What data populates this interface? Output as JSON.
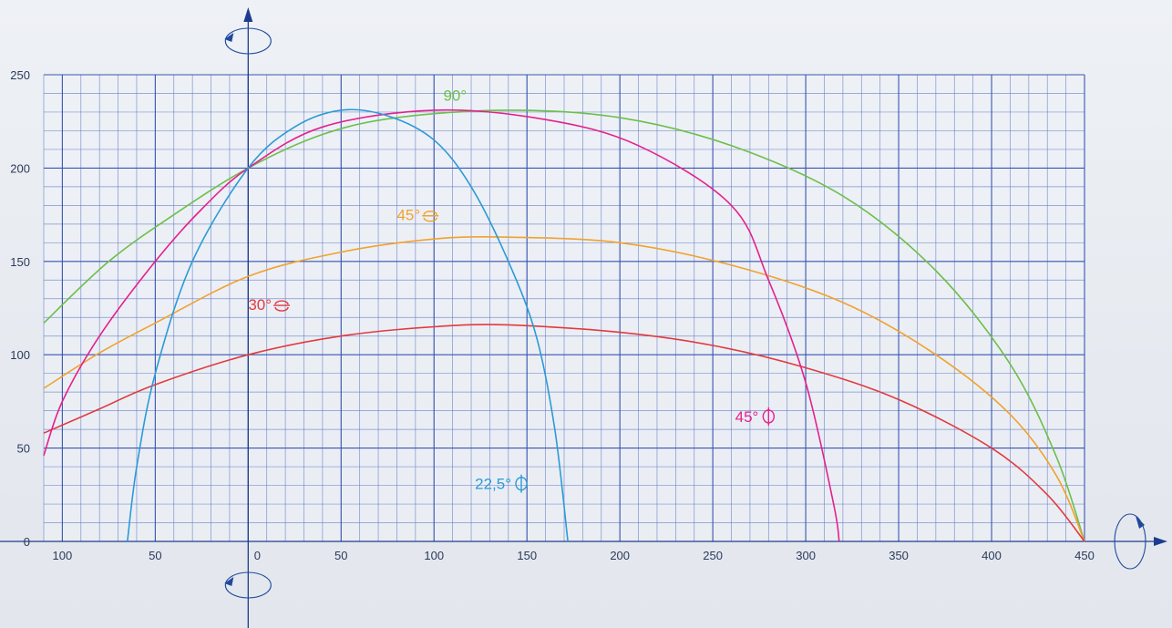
{
  "chart_data": {
    "type": "line",
    "title": "",
    "xlabel": "",
    "ylabel": "",
    "xlim": [
      -110,
      450
    ],
    "ylim": [
      0,
      250
    ],
    "grid": true,
    "x_ticks": [
      {
        "value": -100,
        "label": "100"
      },
      {
        "value": -50,
        "label": "50"
      },
      {
        "value": 0,
        "label": "0"
      },
      {
        "value": 50,
        "label": "50"
      },
      {
        "value": 100,
        "label": "100"
      },
      {
        "value": 150,
        "label": "150"
      },
      {
        "value": 200,
        "label": "200"
      },
      {
        "value": 250,
        "label": "250"
      },
      {
        "value": 300,
        "label": "300"
      },
      {
        "value": 350,
        "label": "350"
      },
      {
        "value": 400,
        "label": "400"
      },
      {
        "value": 450,
        "label": "450"
      }
    ],
    "y_ticks": [
      {
        "value": 0,
        "label": "0"
      },
      {
        "value": 50,
        "label": "50"
      },
      {
        "value": 100,
        "label": "100"
      },
      {
        "value": 150,
        "label": "150"
      },
      {
        "value": 200,
        "label": "200"
      },
      {
        "value": 250,
        "label": "250"
      }
    ],
    "series": [
      {
        "name": "90°",
        "color": "#6cbf4a",
        "rotation_symbol": "",
        "label_at": [
          105,
          236
        ],
        "points": [
          [
            -110,
            117
          ],
          [
            -75,
            150
          ],
          [
            -40,
            175
          ],
          [
            0,
            200
          ],
          [
            40,
            218
          ],
          [
            80,
            227
          ],
          [
            140,
            231
          ],
          [
            200,
            227
          ],
          [
            260,
            212
          ],
          [
            320,
            185
          ],
          [
            370,
            145
          ],
          [
            410,
            95
          ],
          [
            435,
            45
          ],
          [
            450,
            0
          ]
        ]
      },
      {
        "name": "45°",
        "color": "#f0a22e",
        "rotation_symbol": "horizontal",
        "label_at": [
          80,
          172
        ],
        "points": [
          [
            -110,
            82
          ],
          [
            -80,
            101
          ],
          [
            -50,
            117
          ],
          [
            0,
            142
          ],
          [
            50,
            155
          ],
          [
            100,
            162
          ],
          [
            140,
            163
          ],
          [
            200,
            160
          ],
          [
            260,
            148
          ],
          [
            320,
            128
          ],
          [
            370,
            100
          ],
          [
            410,
            68
          ],
          [
            435,
            35
          ],
          [
            450,
            0
          ]
        ]
      },
      {
        "name": "30°",
        "color": "#e23a3f",
        "rotation_symbol": "horizontal",
        "label_at": [
          0,
          124
        ],
        "points": [
          [
            -110,
            58
          ],
          [
            -80,
            71
          ],
          [
            -50,
            84
          ],
          [
            0,
            100
          ],
          [
            50,
            110
          ],
          [
            100,
            115
          ],
          [
            140,
            116
          ],
          [
            200,
            112
          ],
          [
            250,
            105
          ],
          [
            300,
            93
          ],
          [
            350,
            76
          ],
          [
            400,
            50
          ],
          [
            430,
            25
          ],
          [
            450,
            0
          ]
        ]
      },
      {
        "name": "45°",
        "color": "#e5208e",
        "rotation_symbol": "vertical",
        "label_at": [
          262,
          64
        ],
        "points": [
          [
            -110,
            46
          ],
          [
            -100,
            75
          ],
          [
            -80,
            110
          ],
          [
            -50,
            150
          ],
          [
            -25,
            178
          ],
          [
            0,
            200
          ],
          [
            40,
            222
          ],
          [
            100,
            231
          ],
          [
            160,
            226
          ],
          [
            210,
            212
          ],
          [
            260,
            180
          ],
          [
            280,
            140
          ],
          [
            300,
            85
          ],
          [
            315,
            20
          ],
          [
            318,
            0
          ]
        ]
      },
      {
        "name": "22,5°",
        "color": "#2c9ad6",
        "rotation_symbol": "vertical",
        "label_at": [
          122,
          28
        ],
        "points": [
          [
            -65,
            0
          ],
          [
            -60,
            40
          ],
          [
            -50,
            90
          ],
          [
            -30,
            150
          ],
          [
            0,
            200
          ],
          [
            25,
            222
          ],
          [
            50,
            231
          ],
          [
            75,
            228
          ],
          [
            100,
            215
          ],
          [
            120,
            190
          ],
          [
            140,
            150
          ],
          [
            155,
            110
          ],
          [
            165,
            60
          ],
          [
            172,
            0
          ]
        ]
      }
    ]
  }
}
